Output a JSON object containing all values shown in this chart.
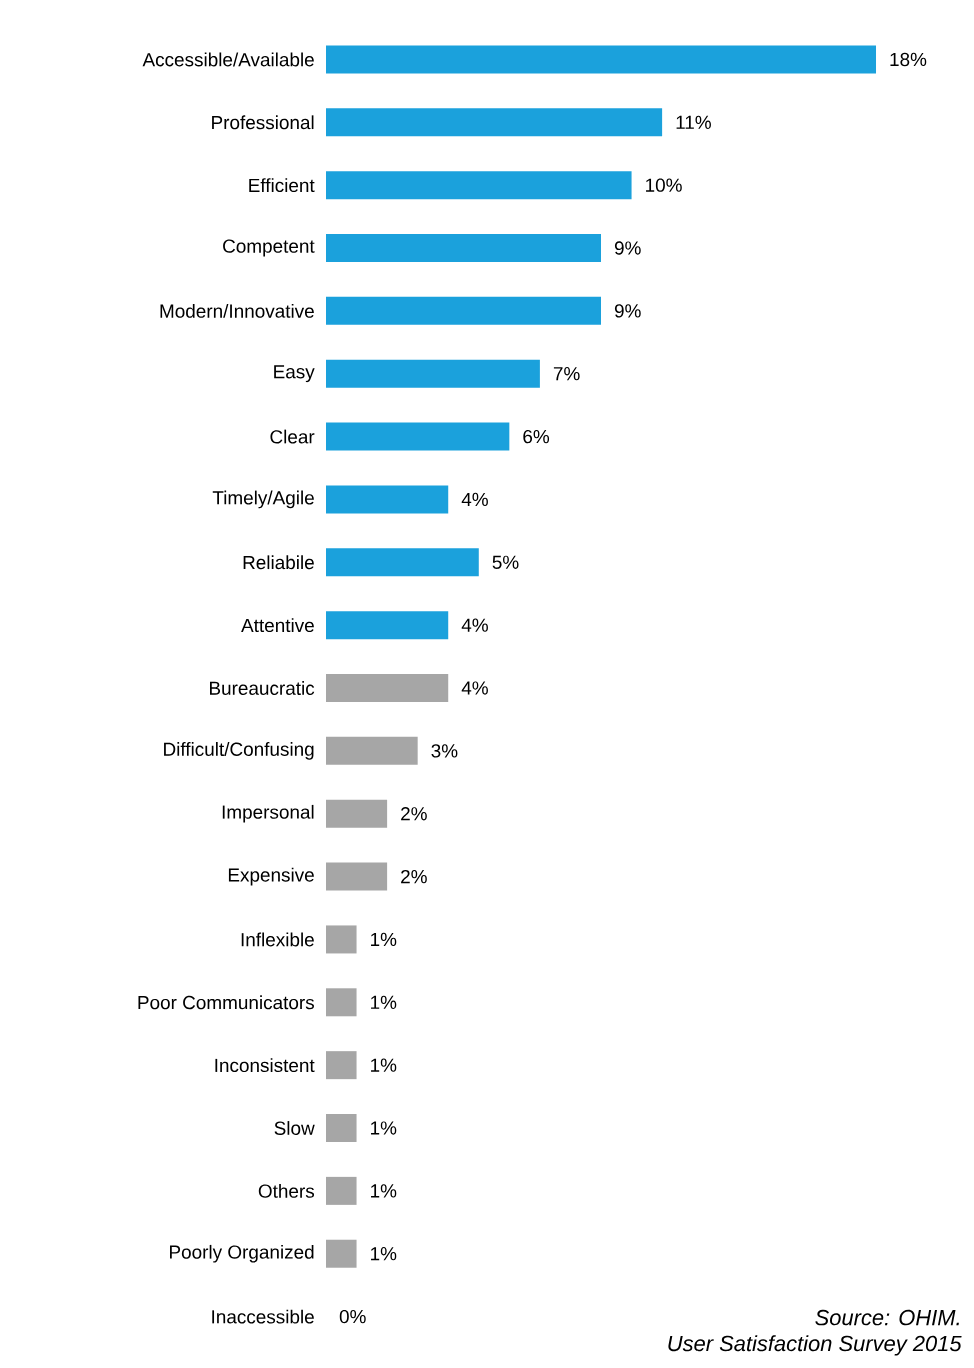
{
  "chart_data": {
    "type": "bar",
    "orientation": "horizontal",
    "categories": [
      "Accessible/Available",
      "Professional",
      "Efficient",
      "Competent",
      "Modern/Innovative",
      "Easy",
      "Clear",
      "Timely/Agile",
      "Reliabile",
      "Attentive",
      "Bureaucratic",
      "Difficult/Confusing",
      "Impersonal",
      "Expensive",
      "Inflexible",
      "Poor Communicators",
      "Inconsistent",
      "Slow",
      "Others",
      "Poorly Organized",
      "Inaccessible"
    ],
    "values": [
      18,
      11,
      10,
      9,
      9,
      7,
      6,
      4,
      5,
      4,
      4,
      3,
      2,
      2,
      1,
      1,
      1,
      1,
      1,
      1,
      0
    ],
    "value_labels": [
      "18%",
      "11%",
      "10%",
      "9%",
      "9%",
      "7%",
      "6%",
      "4%",
      "5%",
      "4%",
      "4%",
      "3%",
      "2%",
      "2%",
      "1%",
      "1%",
      "1%",
      "1%",
      "1%",
      "1%",
      "0%"
    ],
    "colors": [
      "#1ba1dc",
      "#1ba1dc",
      "#1ba1dc",
      "#1ba1dc",
      "#1ba1dc",
      "#1ba1dc",
      "#1ba1dc",
      "#1ba1dc",
      "#1ba1dc",
      "#1ba1dc",
      "#a6a6a6",
      "#a6a6a6",
      "#a6a6a6",
      "#a6a6a6",
      "#a6a6a6",
      "#a6a6a6",
      "#a6a6a6",
      "#a6a6a6",
      "#a6a6a6",
      "#a6a6a6",
      "#a6a6a6"
    ],
    "annotations": [
      "Source: OHIM.",
      "User Satisfaction Survey 2015"
    ]
  }
}
